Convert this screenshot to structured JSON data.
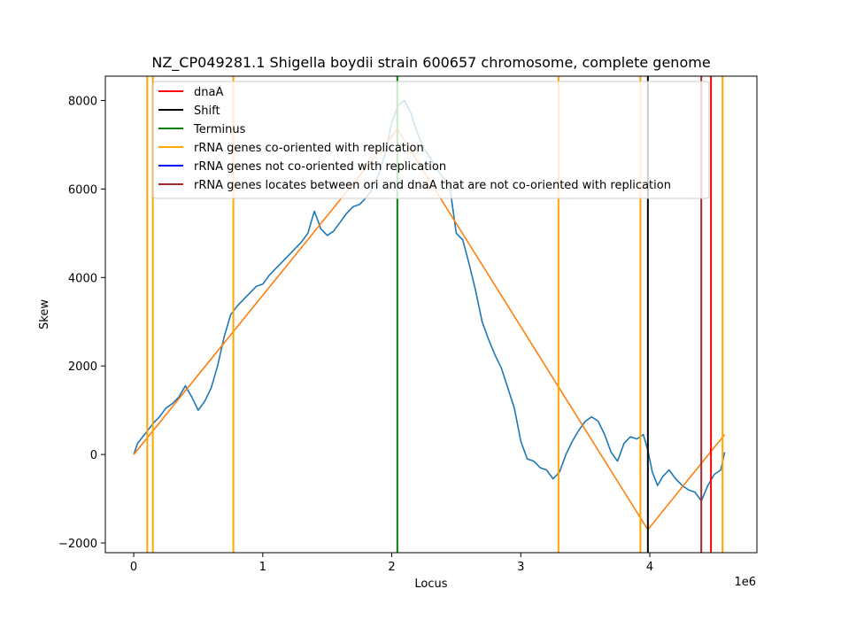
{
  "chart_data": {
    "type": "line",
    "title": "NZ_CP049281.1 Shigella boydii strain 600657 chromosome, complete genome",
    "xlabel": "Locus",
    "ylabel": "Skew",
    "x_offset_label": "1e6",
    "xlim": [
      -220000,
      4830000
    ],
    "ylim": [
      -2220,
      8550
    ],
    "x_ticks": [
      0,
      1000000,
      2000000,
      3000000,
      4000000
    ],
    "x_tick_labels": [
      "0",
      "1",
      "2",
      "3",
      "4"
    ],
    "y_ticks": [
      -2000,
      0,
      2000,
      4000,
      6000,
      8000
    ],
    "y_tick_labels": [
      "−2000",
      "0",
      "2000",
      "4000",
      "6000",
      "8000"
    ],
    "grid": false,
    "legend_position": "top-left",
    "legend": [
      {
        "label": "dnaA",
        "color": "#ff0000"
      },
      {
        "label": "Shift",
        "color": "#000000"
      },
      {
        "label": "Terminus",
        "color": "#008000"
      },
      {
        "label": "rRNA genes co-oriented with replication",
        "color": "#ffa500"
      },
      {
        "label": "rRNA genes not co-oriented with replication",
        "color": "#0000ff"
      },
      {
        "label": "rRNA genes locates between ori and dnaA that are not co-oriented with replication",
        "color": "#a52a2a"
      }
    ],
    "vertical_lines": [
      {
        "kind": "rRNA genes co-oriented with replication",
        "x": 105000,
        "color": "#ffa500"
      },
      {
        "kind": "rRNA genes co-oriented with replication",
        "x": 148000,
        "color": "#ffa500"
      },
      {
        "kind": "rRNA genes co-oriented with replication",
        "x": 772000,
        "color": "#ffa500"
      },
      {
        "kind": "Terminus",
        "x": 2043000,
        "color": "#008000"
      },
      {
        "kind": "rRNA genes co-oriented with replication",
        "x": 3292000,
        "color": "#ffa500"
      },
      {
        "kind": "rRNA genes co-oriented with replication",
        "x": 3927000,
        "color": "#ffa500"
      },
      {
        "kind": "Shift",
        "x": 3985000,
        "color": "#000000"
      },
      {
        "kind": "rRNA genes locates between ori and dnaA that are not co-oriented with replication",
        "x": 4399000,
        "color": "#a52a2a"
      },
      {
        "kind": "dnaA",
        "x": 4474000,
        "color": "#ff0000"
      },
      {
        "kind": "rRNA genes co-oriented with replication",
        "x": 4564000,
        "color": "#ffa500"
      }
    ],
    "series": [
      {
        "color": "#1f77b4",
        "x": [
          0,
          30000,
          70000,
          110000,
          150000,
          200000,
          250000,
          300000,
          350000,
          400000,
          450000,
          500000,
          550000,
          600000,
          650000,
          700000,
          750000,
          800000,
          850000,
          900000,
          950000,
          1000000,
          1050000,
          1100000,
          1150000,
          1200000,
          1250000,
          1300000,
          1350000,
          1400000,
          1450000,
          1500000,
          1550000,
          1600000,
          1650000,
          1700000,
          1750000,
          1800000,
          1850000,
          1900000,
          1950000,
          2000000,
          2050000,
          2100000,
          2150000,
          2200000,
          2250000,
          2300000,
          2350000,
          2400000,
          2450000,
          2500000,
          2550000,
          2600000,
          2650000,
          2700000,
          2750000,
          2800000,
          2850000,
          2900000,
          2950000,
          3000000,
          3050000,
          3100000,
          3150000,
          3200000,
          3250000,
          3300000,
          3350000,
          3400000,
          3450000,
          3500000,
          3550000,
          3600000,
          3650000,
          3700000,
          3750000,
          3800000,
          3850000,
          3900000,
          3950000,
          3985000,
          4020000,
          4060000,
          4100000,
          4150000,
          4200000,
          4250000,
          4300000,
          4350000,
          4400000,
          4450000,
          4500000,
          4550000,
          4580000
        ],
        "y": [
          0,
          250,
          400,
          550,
          700,
          850,
          1050,
          1150,
          1300,
          1550,
          1300,
          1000,
          1200,
          1500,
          2000,
          2650,
          3150,
          3350,
          3500,
          3650,
          3800,
          3850,
          4050,
          4200,
          4350,
          4500,
          4650,
          4800,
          5000,
          5500,
          5100,
          4950,
          5050,
          5250,
          5450,
          5600,
          5650,
          5800,
          6000,
          6350,
          6800,
          7500,
          7900,
          8000,
          7700,
          7250,
          6900,
          6700,
          6450,
          6250,
          6050,
          5000,
          4850,
          4300,
          3700,
          3000,
          2600,
          2250,
          1950,
          1500,
          1050,
          300,
          -100,
          -150,
          -300,
          -350,
          -550,
          -400,
          0,
          300,
          550,
          750,
          850,
          750,
          450,
          50,
          -150,
          250,
          400,
          350,
          450,
          100,
          -400,
          -700,
          -500,
          -350,
          -550,
          -700,
          -800,
          -850,
          -1050,
          -700,
          -450,
          -350,
          50
        ]
      },
      {
        "color": "#ff7f0e",
        "x": [
          0,
          2043000,
          3985000,
          4580000
        ],
        "y": [
          0,
          7350,
          -1700,
          450
        ]
      }
    ]
  }
}
